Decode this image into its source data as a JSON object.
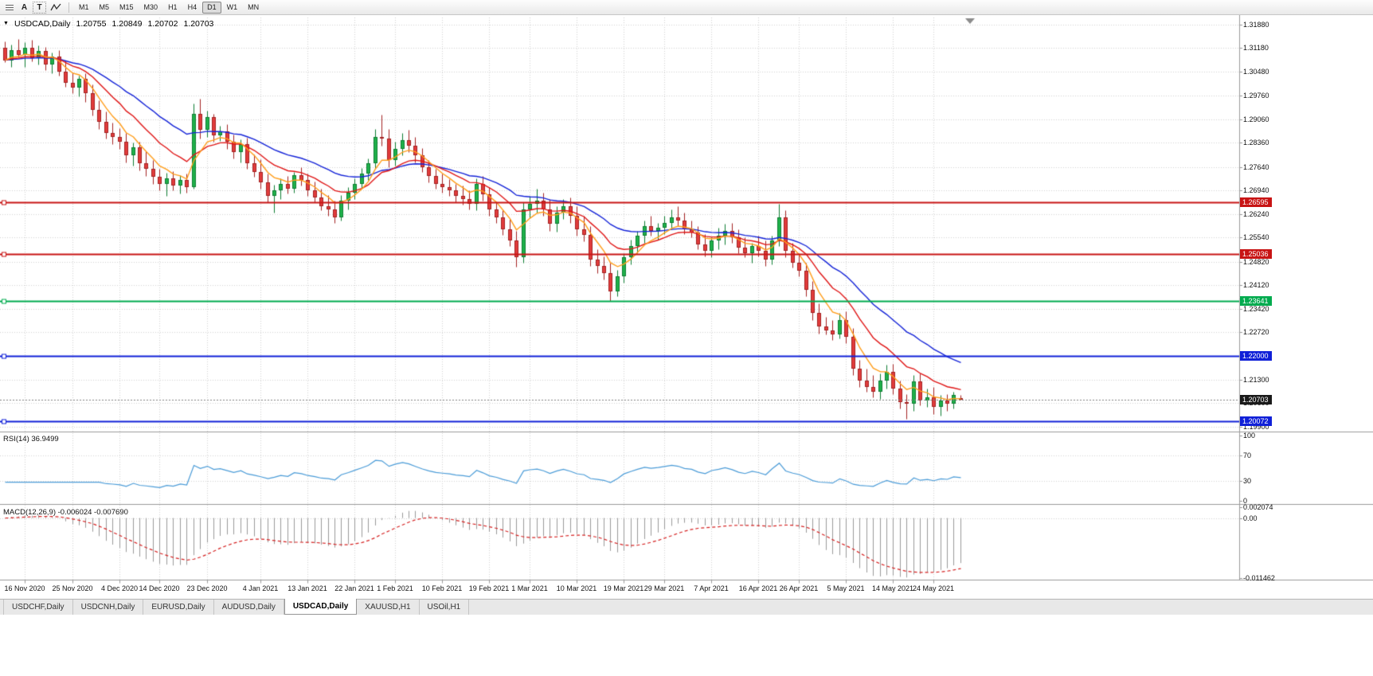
{
  "toolbar": {
    "tool_a": "A",
    "tool_t": "T",
    "timeframes": [
      {
        "label": "M1"
      },
      {
        "label": "M5"
      },
      {
        "label": "M15"
      },
      {
        "label": "M30"
      },
      {
        "label": "H1"
      },
      {
        "label": "H4"
      },
      {
        "label": "D1"
      },
      {
        "label": "W1"
      },
      {
        "label": "MN"
      }
    ],
    "active_timeframe": "D1"
  },
  "chart_header": {
    "symbol_period": "USDCAD,Daily",
    "open": "1.20755",
    "high": "1.20849",
    "low": "1.20702",
    "close": "1.20703"
  },
  "price_axis": {
    "ticks": [
      "1.31880",
      "1.31180",
      "1.30480",
      "1.29760",
      "1.29060",
      "1.28360",
      "1.27640",
      "1.26940",
      "1.26240",
      "1.25540",
      "1.24820",
      "1.24120",
      "1.23420",
      "1.22720",
      "1.22000",
      "1.21300",
      "1.20600",
      "1.19900"
    ]
  },
  "levels": [
    {
      "price": 1.26595,
      "label": "1.26595",
      "color": "#c81414"
    },
    {
      "price": 1.25036,
      "label": "1.25036",
      "color": "#c81414"
    },
    {
      "price": 1.23641,
      "label": "1.23641",
      "color": "#00ab4e"
    },
    {
      "price": 1.22,
      "label": "1.22000",
      "color": "#1020d8"
    },
    {
      "price": 1.20072,
      "label": "1.20072",
      "color": "#1020d8"
    }
  ],
  "current_price": {
    "value": 1.20703,
    "label": "1.20703",
    "color": "#1a1a1a"
  },
  "rsi_panel": {
    "label": "RSI(14) 36.9499",
    "period": 14,
    "value": "36.9499",
    "line_color": "#4b9cd8",
    "levels": [
      70,
      30
    ],
    "ticks": [
      {
        "text": "100",
        "value": 100
      },
      {
        "text": "70",
        "value": 70
      },
      {
        "text": "30",
        "value": 30
      },
      {
        "text": "0",
        "value": 0
      }
    ]
  },
  "macd_panel": {
    "label": "MACD(12,26,9) -0.006024 -0.007690",
    "fast": 12,
    "slow": 26,
    "signal": 9,
    "main_value": "-0.006024",
    "signal_value": "-0.007690",
    "histogram_color": "#9a9a9a",
    "signal_color": "#d62222",
    "range": [
      -0.011462,
      0.002074
    ],
    "ticks": [
      {
        "text": "0.002074",
        "value": 0.002074
      },
      {
        "text": "0.00",
        "value": 0
      },
      {
        "text": "-0.011462",
        "value": -0.011462
      }
    ]
  },
  "time_axis": {
    "labels": [
      {
        "text": "16 Nov 2020",
        "index": 3
      },
      {
        "text": "25 Nov 2020",
        "index": 10
      },
      {
        "text": "4 Dec 2020",
        "index": 17
      },
      {
        "text": "14 Dec 2020",
        "index": 23
      },
      {
        "text": "23 Dec 2020",
        "index": 30
      },
      {
        "text": "4 Jan 2021",
        "index": 38
      },
      {
        "text": "13 Jan 2021",
        "index": 45
      },
      {
        "text": "22 Jan 2021",
        "index": 52
      },
      {
        "text": "1 Feb 2021",
        "index": 58
      },
      {
        "text": "10 Feb 2021",
        "index": 65
      },
      {
        "text": "19 Feb 2021",
        "index": 72
      },
      {
        "text": "1 Mar 2021",
        "index": 78
      },
      {
        "text": "10 Mar 2021",
        "index": 85
      },
      {
        "text": "19 Mar 2021",
        "index": 92
      },
      {
        "text": "29 Mar 2021",
        "index": 98
      },
      {
        "text": "7 Apr 2021",
        "index": 105
      },
      {
        "text": "16 Apr 2021",
        "index": 112
      },
      {
        "text": "26 Apr 2021",
        "index": 118
      },
      {
        "text": "5 May 2021",
        "index": 125
      },
      {
        "text": "14 May 2021",
        "index": 132
      },
      {
        "text": "24 May 2021",
        "index": 138
      }
    ]
  },
  "tabs": [
    {
      "label": "USDCHF,Daily",
      "active": false
    },
    {
      "label": "USDCNH,Daily",
      "active": false
    },
    {
      "label": "EURUSD,Daily",
      "active": false
    },
    {
      "label": "AUDUSD,Daily",
      "active": false
    },
    {
      "label": "USDCAD,Daily",
      "active": true
    },
    {
      "label": "XAUUSD,H1",
      "active": false
    },
    {
      "label": "USOil,H1",
      "active": false
    }
  ],
  "chart_data": {
    "type": "candlestick",
    "symbol": "USDCAD",
    "timeframe": "Daily",
    "ylim": [
      1.1978,
      1.3209
    ],
    "up_color": "#1fb14a",
    "up_edge": "#0e7d32",
    "down_color": "#e23c3c",
    "down_edge": "#a32222",
    "moving_averages": [
      {
        "type": "ema",
        "period": 26,
        "color": "#1524d8"
      },
      {
        "type": "ema",
        "period": 13,
        "color": "#e01616"
      },
      {
        "type": "ema",
        "period": 6,
        "color": "#ff9e1b"
      }
    ],
    "ohlc": [
      [
        1.3118,
        1.3138,
        1.3075,
        1.3082
      ],
      [
        1.3082,
        1.3128,
        1.3062,
        1.3112
      ],
      [
        1.3112,
        1.3145,
        1.309,
        1.3098
      ],
      [
        1.3098,
        1.3135,
        1.3062,
        1.3118
      ],
      [
        1.3118,
        1.3142,
        1.3078,
        1.3088
      ],
      [
        1.3088,
        1.3125,
        1.3068,
        1.311
      ],
      [
        1.311,
        1.3122,
        1.3052,
        1.3068
      ],
      [
        1.3068,
        1.3105,
        1.3042,
        1.3092
      ],
      [
        1.3092,
        1.3112,
        1.3035,
        1.3048
      ],
      [
        1.3048,
        1.308,
        1.3002,
        1.3014
      ],
      [
        1.3014,
        1.3046,
        1.2984,
        1.3
      ],
      [
        1.3,
        1.3036,
        1.2974,
        1.3026
      ],
      [
        1.3026,
        1.3042,
        1.2958,
        1.2984
      ],
      [
        1.2984,
        1.301,
        1.2918,
        1.2934
      ],
      [
        1.2934,
        1.2962,
        1.2878,
        1.2898
      ],
      [
        1.2898,
        1.293,
        1.2848,
        1.2864
      ],
      [
        1.2864,
        1.2896,
        1.2832,
        1.2854
      ],
      [
        1.2854,
        1.288,
        1.2818,
        1.2838
      ],
      [
        1.2838,
        1.2864,
        1.2778,
        1.2798
      ],
      [
        1.2798,
        1.2836,
        1.2768,
        1.2822
      ],
      [
        1.2822,
        1.284,
        1.2754,
        1.2774
      ],
      [
        1.2774,
        1.281,
        1.2738,
        1.2758
      ],
      [
        1.2758,
        1.2784,
        1.2714,
        1.2734
      ],
      [
        1.2734,
        1.2758,
        1.2694,
        1.2714
      ],
      [
        1.2714,
        1.2746,
        1.2678,
        1.273
      ],
      [
        1.273,
        1.2752,
        1.2694,
        1.2708
      ],
      [
        1.2708,
        1.274,
        1.2684,
        1.2724
      ],
      [
        1.2724,
        1.2744,
        1.2688,
        1.2704
      ],
      [
        1.2704,
        1.2952,
        1.2698,
        1.2922
      ],
      [
        1.2922,
        1.2966,
        1.2848,
        1.2874
      ],
      [
        1.2874,
        1.2932,
        1.2854,
        1.2912
      ],
      [
        1.2912,
        1.2922,
        1.2838,
        1.2858
      ],
      [
        1.2858,
        1.2886,
        1.2842,
        1.287
      ],
      [
        1.287,
        1.2892,
        1.2818,
        1.2838
      ],
      [
        1.2838,
        1.286,
        1.2788,
        1.2808
      ],
      [
        1.2808,
        1.2846,
        1.2778,
        1.2832
      ],
      [
        1.2832,
        1.2852,
        1.2758,
        1.2774
      ],
      [
        1.2774,
        1.28,
        1.2734,
        1.2748
      ],
      [
        1.2748,
        1.2786,
        1.2698,
        1.2718
      ],
      [
        1.2718,
        1.2744,
        1.2658,
        1.2678
      ],
      [
        1.2678,
        1.2712,
        1.2628,
        1.2694
      ],
      [
        1.2694,
        1.273,
        1.2668,
        1.2714
      ],
      [
        1.2714,
        1.2738,
        1.2684,
        1.2698
      ],
      [
        1.2698,
        1.275,
        1.2688,
        1.274
      ],
      [
        1.274,
        1.2764,
        1.2708,
        1.2724
      ],
      [
        1.2724,
        1.2744,
        1.2678,
        1.2694
      ],
      [
        1.2694,
        1.272,
        1.2658,
        1.2674
      ],
      [
        1.2674,
        1.2698,
        1.2634,
        1.2648
      ],
      [
        1.2648,
        1.268,
        1.2618,
        1.2638
      ],
      [
        1.2638,
        1.2664,
        1.2598,
        1.2614
      ],
      [
        1.2614,
        1.268,
        1.2604,
        1.2664
      ],
      [
        1.2664,
        1.2704,
        1.2638,
        1.2688
      ],
      [
        1.2688,
        1.273,
        1.2668,
        1.2714
      ],
      [
        1.2714,
        1.276,
        1.2698,
        1.2744
      ],
      [
        1.2744,
        1.279,
        1.2724,
        1.2774
      ],
      [
        1.2774,
        1.2878,
        1.2758,
        1.2854
      ],
      [
        1.2854,
        1.292,
        1.2828,
        1.2848
      ],
      [
        1.2848,
        1.2878,
        1.2764,
        1.2784
      ],
      [
        1.2784,
        1.284,
        1.2768,
        1.2818
      ],
      [
        1.2818,
        1.2864,
        1.2798,
        1.2844
      ],
      [
        1.2844,
        1.2874,
        1.2808,
        1.2828
      ],
      [
        1.2828,
        1.2854,
        1.2778,
        1.2798
      ],
      [
        1.2798,
        1.282,
        1.2748,
        1.2764
      ],
      [
        1.2764,
        1.2784,
        1.2718,
        1.2738
      ],
      [
        1.2738,
        1.2758,
        1.2698,
        1.2714
      ],
      [
        1.2714,
        1.2744,
        1.2688,
        1.2704
      ],
      [
        1.2704,
        1.2728,
        1.2678,
        1.2694
      ],
      [
        1.2694,
        1.2714,
        1.2658,
        1.2678
      ],
      [
        1.2678,
        1.2708,
        1.2652,
        1.2668
      ],
      [
        1.2668,
        1.2694,
        1.2638,
        1.2654
      ],
      [
        1.2654,
        1.273,
        1.2634,
        1.2714
      ],
      [
        1.2714,
        1.2736,
        1.2664,
        1.2682
      ],
      [
        1.2682,
        1.2704,
        1.2618,
        1.2638
      ],
      [
        1.2638,
        1.2658,
        1.2598,
        1.2614
      ],
      [
        1.2614,
        1.2634,
        1.2562,
        1.2578
      ],
      [
        1.2578,
        1.2608,
        1.2528,
        1.2544
      ],
      [
        1.2544,
        1.2574,
        1.2466,
        1.2494
      ],
      [
        1.2494,
        1.2658,
        1.2478,
        1.2638
      ],
      [
        1.2638,
        1.2678,
        1.2612,
        1.2654
      ],
      [
        1.2654,
        1.2698,
        1.2628,
        1.2664
      ],
      [
        1.2664,
        1.2688,
        1.2618,
        1.2638
      ],
      [
        1.2638,
        1.2668,
        1.2574,
        1.2594
      ],
      [
        1.2594,
        1.2648,
        1.2572,
        1.2628
      ],
      [
        1.2628,
        1.2668,
        1.2608,
        1.2648
      ],
      [
        1.2648,
        1.2674,
        1.2598,
        1.2618
      ],
      [
        1.2618,
        1.2648,
        1.2558,
        1.2578
      ],
      [
        1.2578,
        1.2618,
        1.2542,
        1.2562
      ],
      [
        1.2562,
        1.2588,
        1.2468,
        1.2488
      ],
      [
        1.2488,
        1.2518,
        1.2448,
        1.2468
      ],
      [
        1.2468,
        1.2498,
        1.2428,
        1.2448
      ],
      [
        1.2448,
        1.2478,
        1.2364,
        1.2394
      ],
      [
        1.2394,
        1.2458,
        1.2378,
        1.2438
      ],
      [
        1.2438,
        1.2508,
        1.2418,
        1.2494
      ],
      [
        1.2494,
        1.2548,
        1.2474,
        1.2528
      ],
      [
        1.2528,
        1.2574,
        1.2508,
        1.2558
      ],
      [
        1.2558,
        1.2604,
        1.2538,
        1.2588
      ],
      [
        1.2588,
        1.2618,
        1.2558,
        1.2574
      ],
      [
        1.2574,
        1.2598,
        1.2548,
        1.2584
      ],
      [
        1.2584,
        1.2618,
        1.2564,
        1.2598
      ],
      [
        1.2598,
        1.2638,
        1.2578,
        1.2614
      ],
      [
        1.2614,
        1.2648,
        1.2588,
        1.2604
      ],
      [
        1.2604,
        1.2628,
        1.2564,
        1.2578
      ],
      [
        1.2578,
        1.2604,
        1.2554,
        1.2568
      ],
      [
        1.2568,
        1.2588,
        1.2518,
        1.2534
      ],
      [
        1.2534,
        1.2564,
        1.2498,
        1.2514
      ],
      [
        1.2514,
        1.2554,
        1.2494,
        1.2544
      ],
      [
        1.2544,
        1.2584,
        1.2518,
        1.2558
      ],
      [
        1.2558,
        1.2594,
        1.2534,
        1.2574
      ],
      [
        1.2574,
        1.2598,
        1.2538,
        1.2554
      ],
      [
        1.2554,
        1.2578,
        1.2508,
        1.2524
      ],
      [
        1.2524,
        1.2554,
        1.2494,
        1.2508
      ],
      [
        1.2508,
        1.2538,
        1.2478,
        1.2528
      ],
      [
        1.2528,
        1.2558,
        1.2498,
        1.2514
      ],
      [
        1.2514,
        1.2544,
        1.2468,
        1.2488
      ],
      [
        1.2488,
        1.2558,
        1.2474,
        1.2544
      ],
      [
        1.2544,
        1.2654,
        1.2528,
        1.2614
      ],
      [
        1.2614,
        1.2634,
        1.2494,
        1.2514
      ],
      [
        1.2514,
        1.2538,
        1.2464,
        1.2478
      ],
      [
        1.2478,
        1.2508,
        1.2438,
        1.2454
      ],
      [
        1.2454,
        1.2478,
        1.2378,
        1.2398
      ],
      [
        1.2398,
        1.2424,
        1.2308,
        1.2328
      ],
      [
        1.2328,
        1.2358,
        1.2268,
        1.2288
      ],
      [
        1.2288,
        1.2318,
        1.2264,
        1.2278
      ],
      [
        1.2278,
        1.2308,
        1.2248,
        1.2264
      ],
      [
        1.2264,
        1.2328,
        1.2254,
        1.2308
      ],
      [
        1.2308,
        1.2334,
        1.2238,
        1.2258
      ],
      [
        1.2258,
        1.2284,
        1.2144,
        1.2164
      ],
      [
        1.2164,
        1.2188,
        1.2108,
        1.2128
      ],
      [
        1.2128,
        1.2164,
        1.2094,
        1.2108
      ],
      [
        1.2108,
        1.2144,
        1.2078,
        1.2094
      ],
      [
        1.2094,
        1.2148,
        1.2074,
        1.2128
      ],
      [
        1.2128,
        1.2174,
        1.2104,
        1.2154
      ],
      [
        1.2154,
        1.2178,
        1.2088,
        1.2104
      ],
      [
        1.2104,
        1.2128,
        1.2044,
        1.2064
      ],
      [
        1.2064,
        1.2088,
        1.2013,
        1.2058
      ],
      [
        1.2058,
        1.2144,
        1.2038,
        1.2124
      ],
      [
        1.2124,
        1.2148,
        1.2054,
        1.2068
      ],
      [
        1.2068,
        1.2104,
        1.2048,
        1.2078
      ],
      [
        1.2078,
        1.2108,
        1.2028,
        1.2048
      ],
      [
        1.2048,
        1.2084,
        1.2024,
        1.2068
      ],
      [
        1.2068,
        1.2088,
        1.2038,
        1.2058
      ],
      [
        1.2058,
        1.2094,
        1.2044,
        1.2084
      ],
      [
        1.20755,
        1.20849,
        1.20702,
        1.20703
      ]
    ]
  }
}
